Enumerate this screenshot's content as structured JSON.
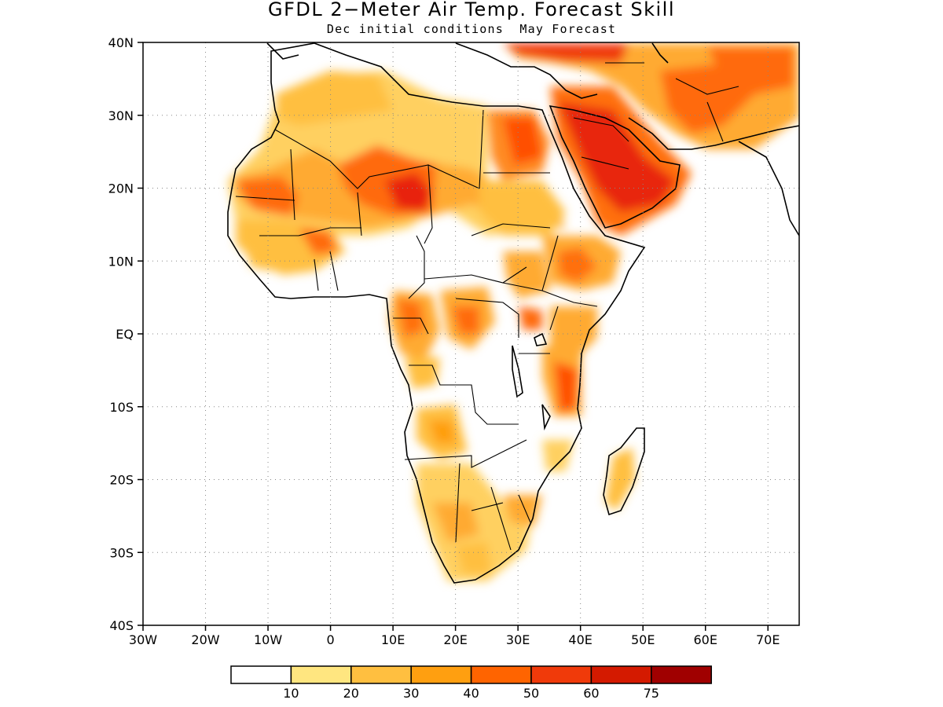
{
  "title": "GFDL 2−Meter Air Temp. Forecast Skill",
  "subtitle": "Dec initial conditions  May Forecast",
  "map": {
    "lon_range": [
      -30,
      75
    ],
    "lat_range": [
      -40,
      40
    ],
    "lat_ticks": [
      "40N",
      "30N",
      "20N",
      "10N",
      "EQ",
      "10S",
      "20S",
      "30S",
      "40S"
    ],
    "lon_ticks": [
      "30W",
      "20W",
      "10W",
      "0",
      "10E",
      "20E",
      "30E",
      "40E",
      "50E",
      "60E",
      "70E"
    ],
    "gridlines": "dotted"
  },
  "legend": {
    "colors": [
      "#ffffff",
      "#ffe680",
      "#ffbf40",
      "#ff9f10",
      "#ff6400",
      "#f03a0a",
      "#d41a00",
      "#a00000"
    ],
    "labels": [
      "10",
      "20",
      "30",
      "40",
      "50",
      "60",
      "75"
    ]
  }
}
